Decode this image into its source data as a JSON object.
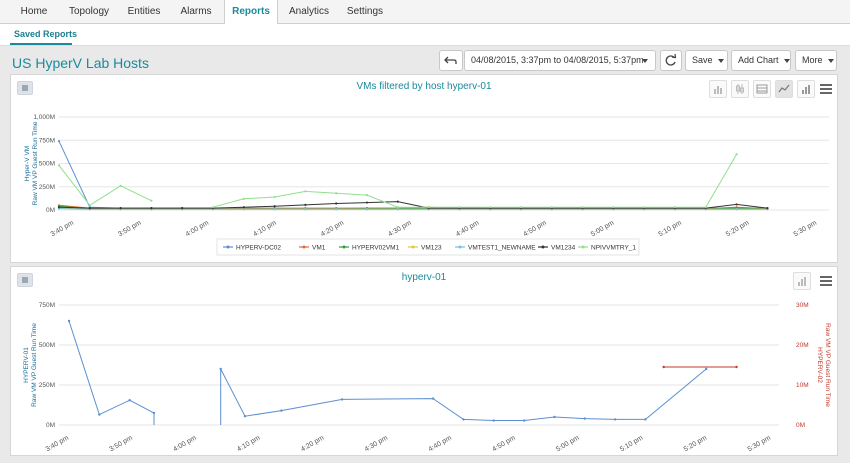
{
  "nav": {
    "tabs": [
      "Home",
      "Topology",
      "Entities",
      "Alarms",
      "Reports",
      "Analytics",
      "Settings"
    ],
    "active": "Reports"
  },
  "subnav": {
    "saved_reports": "Saved Reports"
  },
  "page": {
    "title": "US HyperV Lab Hosts"
  },
  "toolbar": {
    "back_icon": "back-arrow-icon",
    "date_range": "04/08/2015, 3:37pm to 04/08/2015, 5:37pm",
    "refresh_icon": "refresh-icon",
    "save_label": "Save",
    "add_chart_label": "Add Chart",
    "more_label": "More"
  },
  "icons": {
    "chart_type_buttons": [
      "column-chart-icon",
      "candlestick-chart-icon",
      "table-icon",
      "line-chart-icon",
      "bar-chart-icon"
    ],
    "menu": "hamburger-menu-icon"
  },
  "colors": {
    "accent": "#1a8a9c",
    "series": [
      "#5b8fd0",
      "#e06a2e",
      "#3a9a3a",
      "#e8c53a",
      "#6fc3e8",
      "#333333",
      "#8fe08f"
    ],
    "right_axis": "#c0392b"
  },
  "chart_data": [
    {
      "type": "line",
      "title": "VMs filtered by host hyperv-01",
      "ylabel": "Hyper-V VM Raw VM VP Guest Run Time",
      "ylim": [
        0,
        1000
      ],
      "yticks": [
        "0M",
        "250M",
        "500M",
        "750M",
        "1,000M"
      ],
      "xlabels": [
        "3:40 pm",
        "3:50 pm",
        "4:00 pm",
        "4:10 pm",
        "4:20 pm",
        "4:30 pm",
        "4:40 pm",
        "4:50 pm",
        "5:00 pm",
        "5:10 pm",
        "5:20 pm",
        "5:30 pm"
      ],
      "x": [
        0,
        5,
        10,
        15,
        20,
        25,
        30,
        35,
        40,
        45,
        50,
        55,
        60,
        65,
        70,
        75,
        80,
        85,
        90,
        95,
        100,
        105,
        110,
        115
      ],
      "grid": true,
      "legend_position": "bottom",
      "series": [
        {
          "name": "HYPERV-DC02",
          "values": [
            740,
            30,
            20,
            20,
            20,
            20,
            20,
            20,
            20,
            20,
            20,
            20,
            20,
            20,
            20,
            20,
            20,
            20,
            20,
            20,
            20,
            20,
            20,
            20
          ]
        },
        {
          "name": "VM1",
          "values": [
            50,
            20,
            15,
            15,
            15,
            15,
            15,
            15,
            15,
            15,
            20,
            20,
            30,
            20,
            15,
            15,
            15,
            15,
            15,
            15,
            15,
            15,
            30,
            15
          ]
        },
        {
          "name": "HYPERV02VM1",
          "values": [
            40,
            15,
            12,
            12,
            12,
            12,
            12,
            12,
            12,
            12,
            15,
            15,
            20,
            15,
            12,
            12,
            12,
            12,
            12,
            12,
            12,
            12,
            20,
            12
          ]
        },
        {
          "name": "VM123",
          "values": [
            20,
            10,
            10,
            10,
            10,
            10,
            10,
            10,
            10,
            10,
            10,
            10,
            10,
            10,
            10,
            10,
            10,
            10,
            10,
            10,
            10,
            10,
            10,
            10
          ]
        },
        {
          "name": "VMTEST1_NEWNAME",
          "values": [
            15,
            8,
            8,
            8,
            8,
            8,
            8,
            8,
            8,
            8,
            8,
            8,
            8,
            8,
            8,
            8,
            8,
            8,
            8,
            8,
            8,
            8,
            8,
            8
          ]
        },
        {
          "name": "VM1234",
          "values": [
            30,
            20,
            20,
            20,
            20,
            20,
            30,
            40,
            55,
            70,
            80,
            90,
            20,
            20,
            20,
            20,
            20,
            20,
            20,
            20,
            20,
            20,
            60,
            20
          ]
        },
        {
          "name": "NPIVVMTRY_1",
          "values": [
            480,
            50,
            260,
            100,
            null,
            30,
            120,
            140,
            200,
            180,
            160,
            30,
            30,
            30,
            30,
            30,
            30,
            30,
            30,
            30,
            30,
            30,
            600,
            null
          ]
        }
      ]
    },
    {
      "type": "line",
      "title": "hyperv-01",
      "ylabel": "HYPERV-01 Raw VM VP Guest Run Time",
      "ylabel_right": "HYPERV-02 Raw VM VP Guest Run Time",
      "ylim": [
        0,
        750
      ],
      "ylim_right": [
        0,
        30
      ],
      "yticks": [
        "0M",
        "250M",
        "500M",
        "750M"
      ],
      "yticks_right": [
        "0M",
        "10M",
        "20M",
        "30M"
      ],
      "xlabels": [
        "3:40 pm",
        "3:50 pm",
        "4:00 pm",
        "4:10 pm",
        "4:20 pm",
        "4:30 pm",
        "4:40 pm",
        "4:50 pm",
        "5:00 pm",
        "5:10 pm",
        "5:20 pm",
        "5:30 pm"
      ],
      "grid": true,
      "series": [
        {
          "name": "HYPERV-01",
          "axis": "left",
          "points": [
            [
              0,
              650
            ],
            [
              5,
              65
            ],
            [
              10,
              155
            ],
            [
              14,
              75
            ],
            [
              14,
              0
            ],
            [
              null,
              null
            ],
            [
              25,
              0
            ],
            [
              25,
              350
            ],
            [
              29,
              55
            ],
            [
              35,
              90
            ],
            [
              45,
              160
            ],
            [
              60,
              165
            ],
            [
              65,
              35
            ],
            [
              70,
              28
            ],
            [
              75,
              28
            ],
            [
              80,
              50
            ],
            [
              85,
              40
            ],
            [
              90,
              35
            ],
            [
              95,
              35
            ],
            [
              105,
              350
            ]
          ]
        },
        {
          "name": "HYPERV-02",
          "axis": "right",
          "points": [
            [
              98,
              14.5
            ],
            [
              110,
              14.5
            ]
          ]
        }
      ]
    }
  ]
}
